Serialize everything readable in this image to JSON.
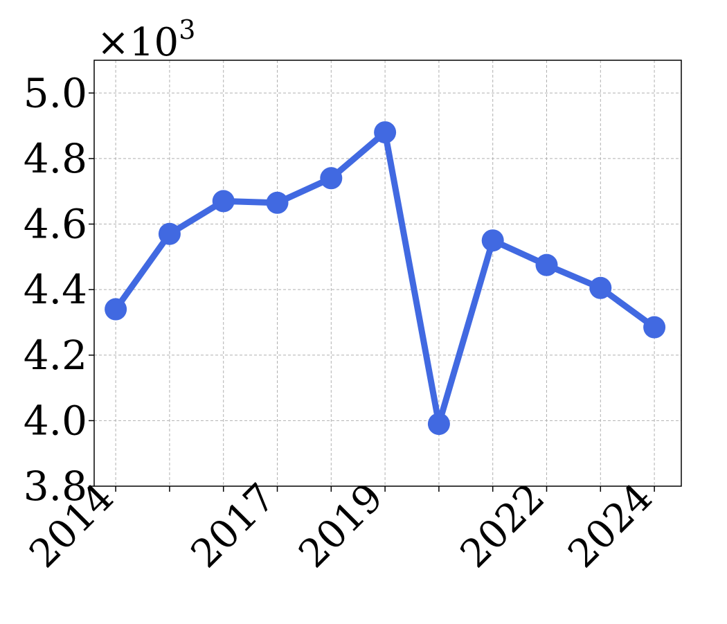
{
  "chart_data": {
    "type": "line",
    "title": "",
    "xlabel": "",
    "ylabel": "",
    "y_multiplier": {
      "base": "×10",
      "exponent": "3"
    },
    "x": [
      2014,
      2015,
      2016,
      2017,
      2018,
      2019,
      2020,
      2021,
      2022,
      2023,
      2024
    ],
    "x_tick_labels": [
      "2014",
      "2017",
      "2019",
      "2022",
      "2024"
    ],
    "x_labeled_ticks": [
      2014,
      2017,
      2019,
      2022,
      2024
    ],
    "xlim": [
      2013.6,
      2024.5
    ],
    "ylim": [
      3.8,
      5.1
    ],
    "y_ticks": [
      3.8,
      4.0,
      4.2,
      4.4,
      4.6,
      4.8,
      5.0
    ],
    "y_tick_labels": [
      "3.8",
      "4.0",
      "4.2",
      "4.4",
      "4.6",
      "4.8",
      "5.0"
    ],
    "series": [
      {
        "values": [
          4.34,
          4.57,
          4.67,
          4.665,
          4.74,
          4.88,
          3.99,
          4.55,
          4.475,
          4.405,
          4.285
        ],
        "color": "#4169e1",
        "marker": "circle"
      }
    ],
    "grid": true,
    "legend": "none"
  }
}
